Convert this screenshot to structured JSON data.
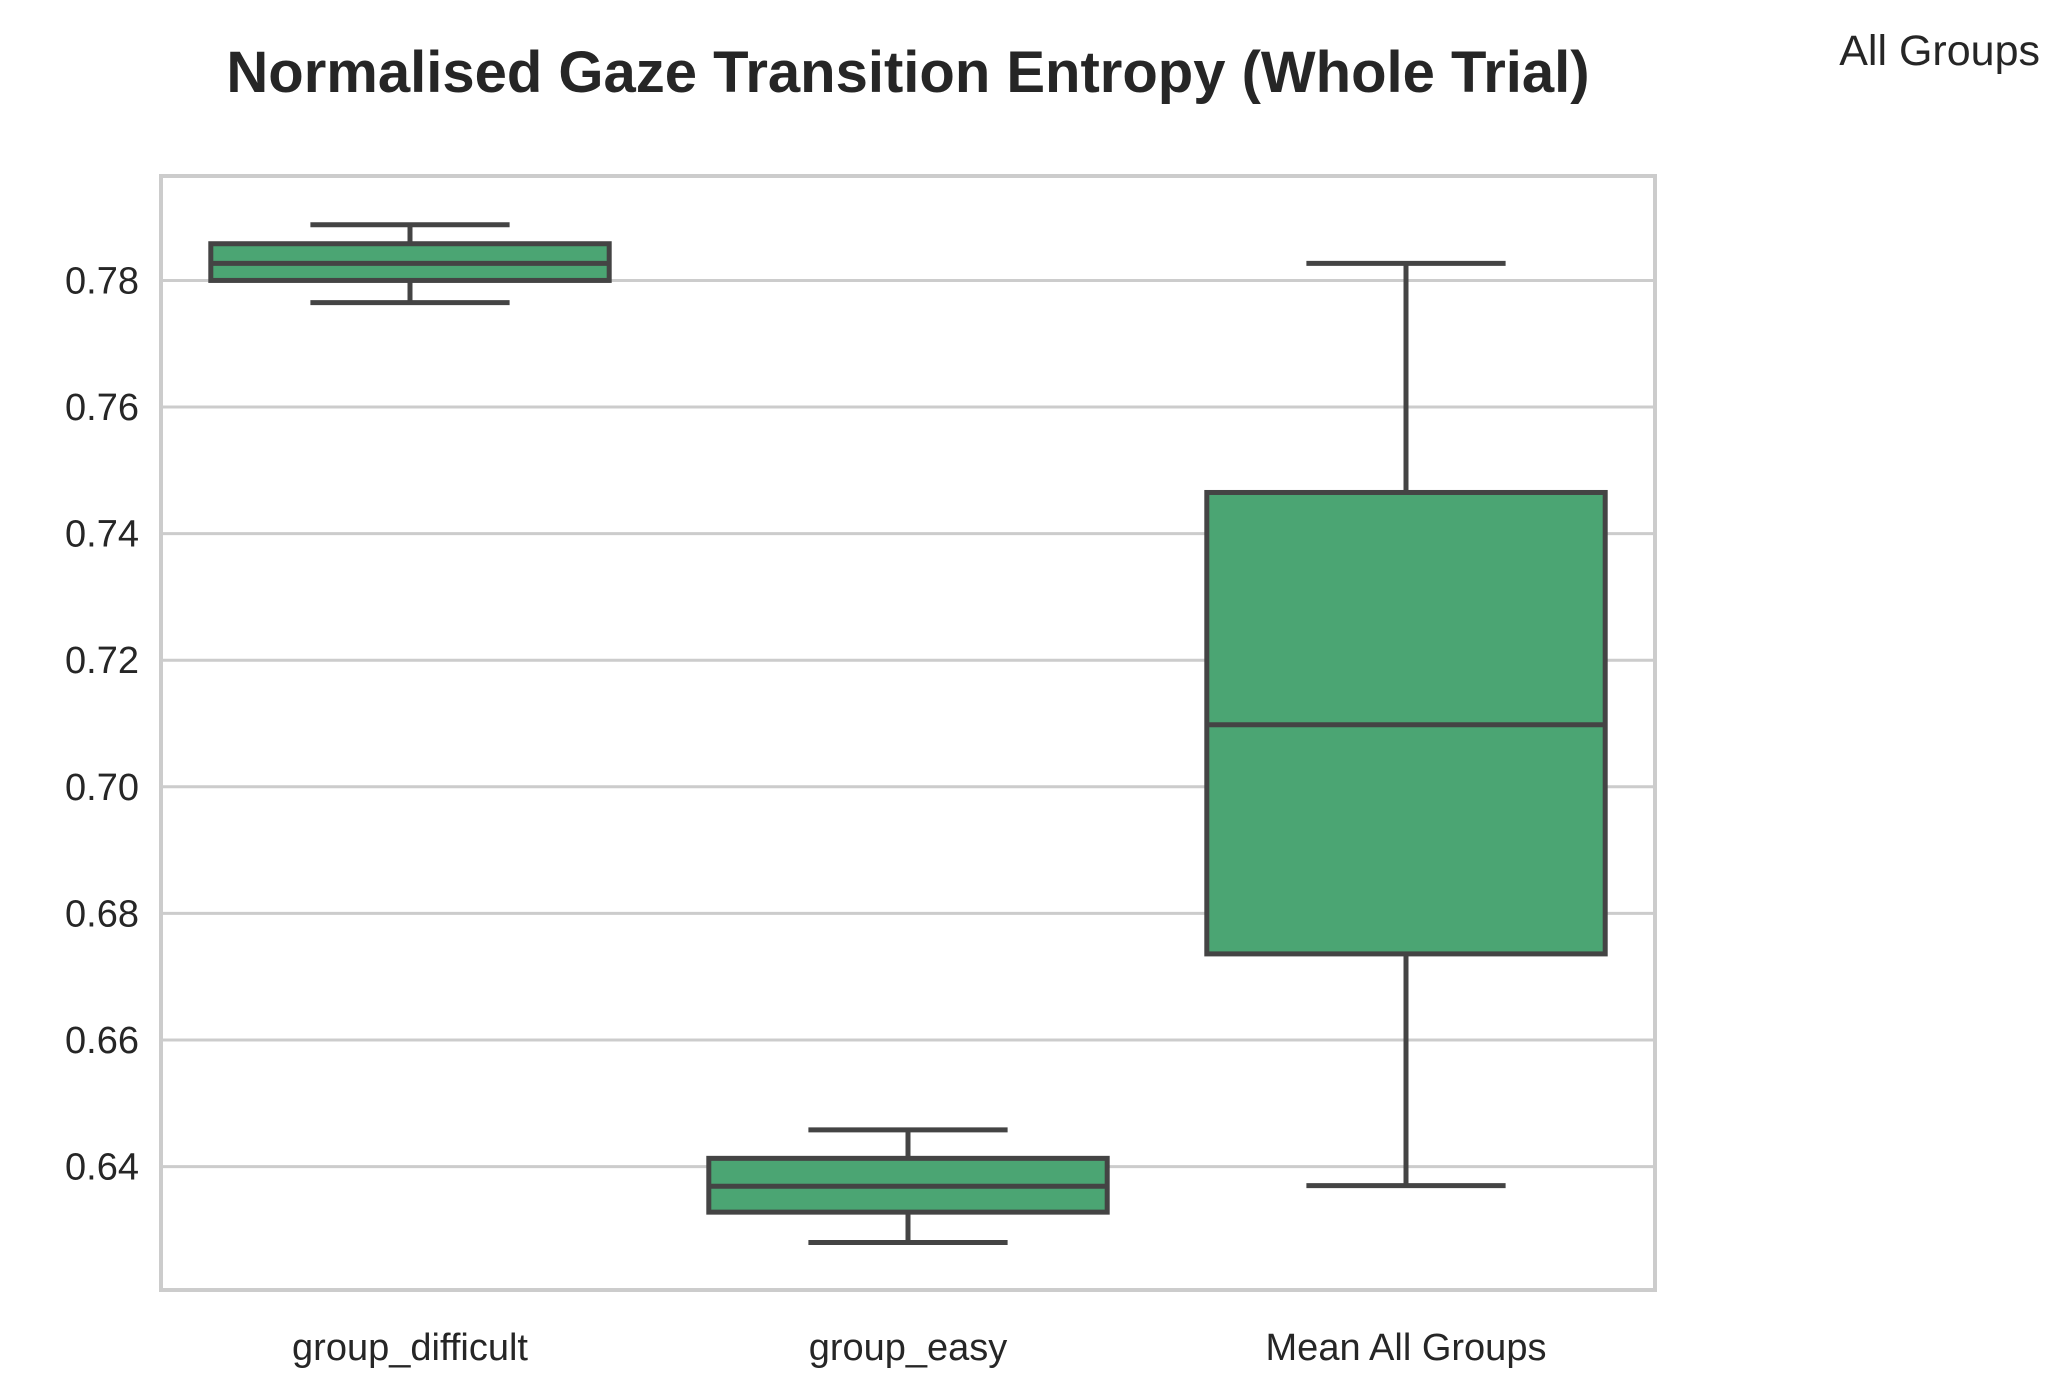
{
  "chart_data": {
    "type": "box",
    "title": "Normalised Gaze Transition Entropy (Whole Trial)",
    "corner_label": "All Groups",
    "xlabel": "",
    "ylabel": "",
    "ylim": [
      0.6205,
      0.7965
    ],
    "yticks": [
      "0.64",
      "0.66",
      "0.68",
      "0.70",
      "0.72",
      "0.74",
      "0.76",
      "0.78"
    ],
    "ytick_values": [
      0.64,
      0.66,
      0.68,
      0.7,
      0.72,
      0.74,
      0.76,
      0.78
    ],
    "grid": true,
    "box_color": "#4ba573",
    "line_color": "#444444",
    "categories": [
      "group_difficult",
      "group_easy",
      "Mean All Groups"
    ],
    "boxes": [
      {
        "category": "group_difficult",
        "whislo": 0.7765,
        "q1": 0.78,
        "med": 0.7827,
        "q3": 0.7858,
        "whishi": 0.7888
      },
      {
        "category": "group_easy",
        "whislo": 0.628,
        "q1": 0.6328,
        "med": 0.6369,
        "q3": 0.6413,
        "whishi": 0.6458
      },
      {
        "category": "Mean All Groups",
        "whislo": 0.637,
        "q1": 0.6736,
        "med": 0.7098,
        "q3": 0.7465,
        "whishi": 0.7827
      }
    ]
  }
}
